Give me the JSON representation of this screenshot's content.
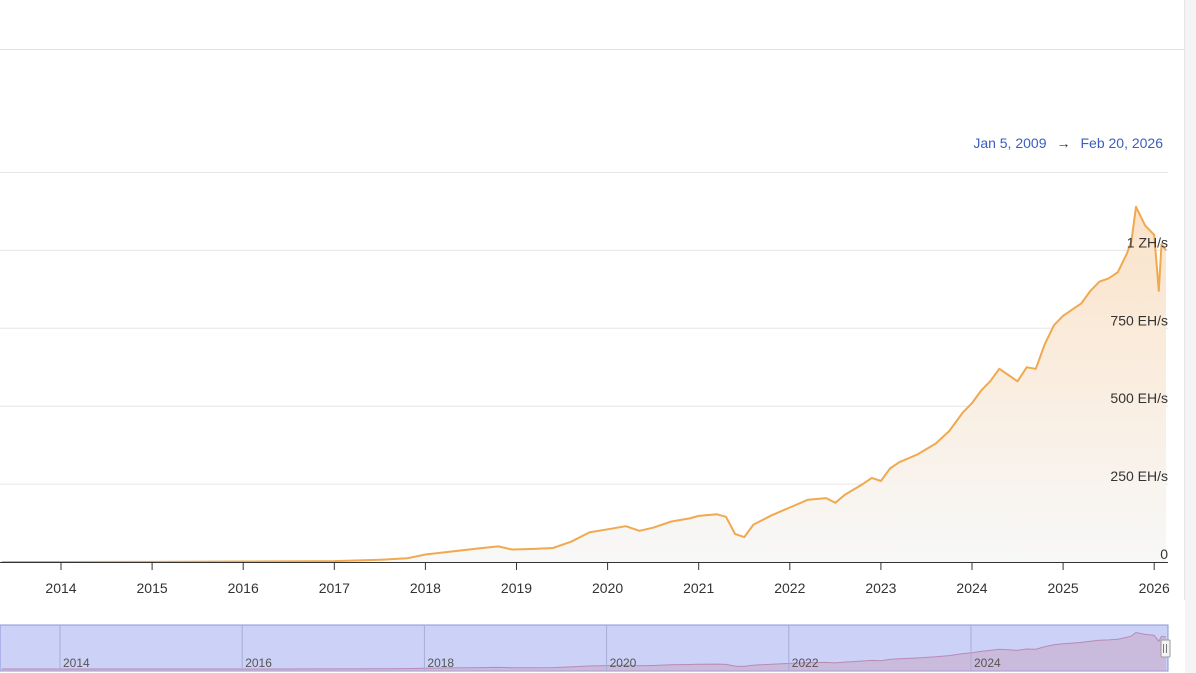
{
  "range": {
    "start": "Jan 5, 2009",
    "arrow": "→",
    "end": "Feb 20, 2026"
  },
  "colors": {
    "line": "#f0a94f",
    "area_top": "#fbe3c9",
    "area_bottom": "#f8f8f8",
    "grid": "#e6e6e6",
    "navigator_bg": "#ccd1f7",
    "navigator_border": "#8a95d8"
  },
  "chart_data": {
    "type": "area",
    "title": "",
    "xlabel": "",
    "ylabel": "",
    "y_unit": "EH/s",
    "ylim": [
      0,
      1250
    ],
    "y_ticks": [
      {
        "value": 0,
        "label": "0"
      },
      {
        "value": 250,
        "label": "250 EH/s"
      },
      {
        "value": 500,
        "label": "500 EH/s"
      },
      {
        "value": 750,
        "label": "750 EH/s"
      },
      {
        "value": 1000,
        "label": "1 ZH/s"
      }
    ],
    "x_ticks": [
      "2014",
      "2015",
      "2016",
      "2017",
      "2018",
      "2019",
      "2020",
      "2021",
      "2022",
      "2023",
      "2024",
      "2025",
      "2026"
    ],
    "navigator_ticks": [
      "2014",
      "2016",
      "2018",
      "2020",
      "2022",
      "2024"
    ],
    "grid": true,
    "series": [
      {
        "x": [
          2013.35,
          2014.0,
          2015.0,
          2016.0,
          2017.0,
          2017.5,
          2017.8,
          2018.0,
          2018.3,
          2018.6,
          2018.8,
          2018.95,
          2019.2,
          2019.4,
          2019.6,
          2019.8,
          2020.0,
          2020.2,
          2020.35,
          2020.5,
          2020.7,
          2020.9,
          2021.0,
          2021.2,
          2021.3,
          2021.4,
          2021.5,
          2021.6,
          2021.8,
          2022.0,
          2022.2,
          2022.4,
          2022.5,
          2022.6,
          2022.8,
          2022.9,
          2023.0,
          2023.1,
          2023.2,
          2023.4,
          2023.6,
          2023.75,
          2023.9,
          2024.0,
          2024.1,
          2024.2,
          2024.3,
          2024.4,
          2024.5,
          2024.6,
          2024.7,
          2024.8,
          2024.9,
          2025.0,
          2025.1,
          2025.2,
          2025.3,
          2025.4,
          2025.5,
          2025.6,
          2025.7,
          2025.75,
          2025.8,
          2025.9,
          2026.0,
          2026.05,
          2026.08,
          2026.13
        ],
        "y": [
          0,
          0.1,
          0.4,
          1.5,
          3,
          7,
          12,
          24,
          34,
          44,
          50,
          40,
          42,
          45,
          65,
          95,
          105,
          115,
          100,
          110,
          130,
          140,
          148,
          153,
          145,
          90,
          80,
          120,
          150,
          175,
          200,
          205,
          190,
          215,
          250,
          270,
          260,
          300,
          320,
          345,
          380,
          420,
          480,
          510,
          550,
          580,
          620,
          600,
          580,
          625,
          620,
          700,
          760,
          790,
          810,
          830,
          870,
          900,
          910,
          930,
          990,
          1030,
          1140,
          1080,
          1050,
          870,
          1020,
          1000
        ]
      }
    ]
  }
}
